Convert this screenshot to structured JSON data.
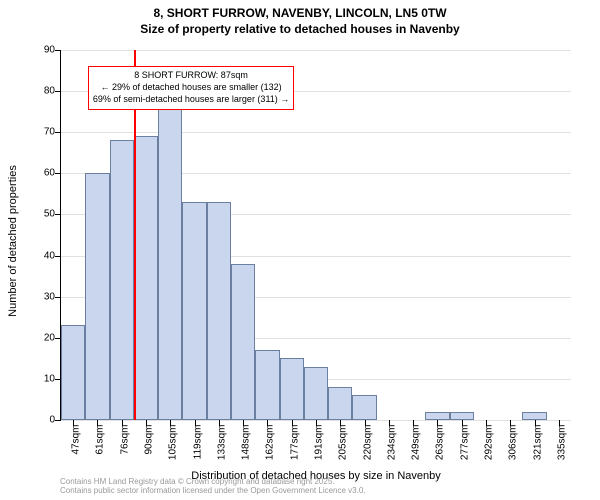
{
  "title_line1": "8, SHORT FURROW, NAVENBY, LINCOLN, LN5 0TW",
  "title_line2": "Size of property relative to detached houses in Navenby",
  "title_fontsize": 12,
  "chart": {
    "type": "histogram",
    "y_axis_label": "Number of detached properties",
    "x_axis_label": "Distribution of detached houses by size in Navenby",
    "ylim": [
      0,
      90
    ],
    "ytick_step": 10,
    "y_ticks": [
      0,
      10,
      20,
      30,
      40,
      50,
      60,
      70,
      80,
      90
    ],
    "x_categories": [
      "47sqm",
      "61sqm",
      "76sqm",
      "90sqm",
      "105sqm",
      "119sqm",
      "133sqm",
      "148sqm",
      "162sqm",
      "177sqm",
      "191sqm",
      "205sqm",
      "220sqm",
      "234sqm",
      "249sqm",
      "263sqm",
      "277sqm",
      "292sqm",
      "306sqm",
      "321sqm",
      "335sqm"
    ],
    "values": [
      23,
      60,
      68,
      69,
      78,
      53,
      53,
      38,
      17,
      15,
      13,
      8,
      6,
      0,
      0,
      2,
      2,
      0,
      0,
      2,
      0
    ],
    "bar_fill": "#cad5ee",
    "bar_border": "#6b7fa0",
    "bar_border_width": 1,
    "background_color": "#ffffff",
    "grid_color": "#e0e0e0",
    "axis_color": "#000000",
    "tick_fontsize": 10,
    "label_fontsize": 11,
    "vline": {
      "value_index": 3,
      "color": "#ff0000",
      "width": 2
    },
    "callout": {
      "line1": "8 SHORT FURROW: 87sqm",
      "line2": "← 29% of detached houses are smaller (132)",
      "line3": "69% of semi-detached houses are larger (311) →",
      "border_color": "#ff0000",
      "fontsize": 9,
      "top_value": 86
    }
  },
  "attribution": {
    "line1": "Contains HM Land Registry data © Crown copyright and database right 2025.",
    "line2": "Contains public sector information licensed under the Open Government Licence v3.0.",
    "fontsize": 8,
    "color": "#999999"
  }
}
